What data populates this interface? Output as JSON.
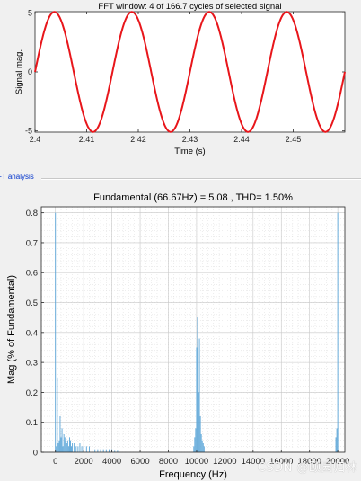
{
  "section": {
    "title": "FT analysis"
  },
  "watermark": "CSDN @颐园归林",
  "chart_data": [
    {
      "type": "line",
      "title": "FFT window: 4 of 166.7 cycles of selected signal",
      "xlabel": "Time (s)",
      "ylabel": "Signal mag.",
      "xlim": [
        2.4,
        2.46
      ],
      "ylim": [
        -5.1,
        5.1
      ],
      "xticks": [
        2.4,
        2.41,
        2.42,
        2.43,
        2.44,
        2.45
      ],
      "xtick_labels": [
        "2.4",
        "2.41",
        "2.42",
        "2.43",
        "2.44",
        "2.45"
      ],
      "yticks": [
        -5,
        0,
        5
      ],
      "ytick_labels": [
        "-5",
        "0",
        "5"
      ],
      "grid": false,
      "series": [
        {
          "frequency_hz": 66.67,
          "amplitude": 5.08,
          "peak_time": 2.40375,
          "color": "#e8161b"
        }
      ]
    },
    {
      "type": "bar",
      "title": "Fundamental (66.67Hz) = 5.08 , THD= 1.50%",
      "xlabel": "Frequency (Hz)",
      "ylabel": "Mag (% of Fundamental)",
      "xlim": [
        -1000,
        20500
      ],
      "ylim": [
        0,
        0.82
      ],
      "xticks": [
        0,
        2000,
        4000,
        6000,
        8000,
        10000,
        12000,
        14000,
        16000,
        18000,
        20000
      ],
      "xtick_labels": [
        "0",
        "2000",
        "4000",
        "6000",
        "8000",
        "10000",
        "12000",
        "14000",
        "16000",
        "18000",
        "20000"
      ],
      "yticks": [
        0,
        0.1,
        0.2,
        0.3,
        0.4,
        0.5,
        0.6,
        0.7,
        0.8
      ],
      "ytick_labels": [
        "0",
        "0.1",
        "0.2",
        "0.3",
        "0.4",
        "0.5",
        "0.6",
        "0.7",
        "0.8"
      ],
      "grid": true,
      "color": "#5aa5d8",
      "x": [
        0,
        67,
        133,
        200,
        267,
        333,
        400,
        467,
        533,
        600,
        667,
        733,
        800,
        867,
        933,
        1000,
        1067,
        1133,
        1200,
        1333,
        1467,
        1600,
        1733,
        1867,
        2000,
        2200,
        2400,
        2600,
        2800,
        3000,
        3200,
        3400,
        3600,
        3800,
        4000,
        4200,
        4400,
        9800,
        9867,
        9933,
        10000,
        10067,
        10133,
        10200,
        10267,
        10333,
        10400,
        10467,
        10533,
        19867,
        19933,
        20000
      ],
      "values": [
        0.8,
        0.02,
        0.25,
        0.03,
        0.04,
        0.12,
        0.05,
        0.08,
        0.02,
        0.06,
        0.05,
        0.04,
        0.03,
        0.04,
        0.02,
        0.05,
        0.04,
        0.02,
        0.03,
        0.03,
        0.02,
        0.02,
        0.03,
        0.02,
        0.02,
        0.02,
        0.02,
        0.01,
        0.01,
        0.01,
        0.01,
        0.01,
        0.01,
        0.01,
        0.01,
        0.005,
        0.005,
        0.02,
        0.05,
        0.08,
        0.35,
        0.45,
        0.2,
        0.38,
        0.12,
        0.06,
        0.04,
        0.03,
        0.02,
        0.05,
        0.08,
        0.8
      ]
    }
  ]
}
